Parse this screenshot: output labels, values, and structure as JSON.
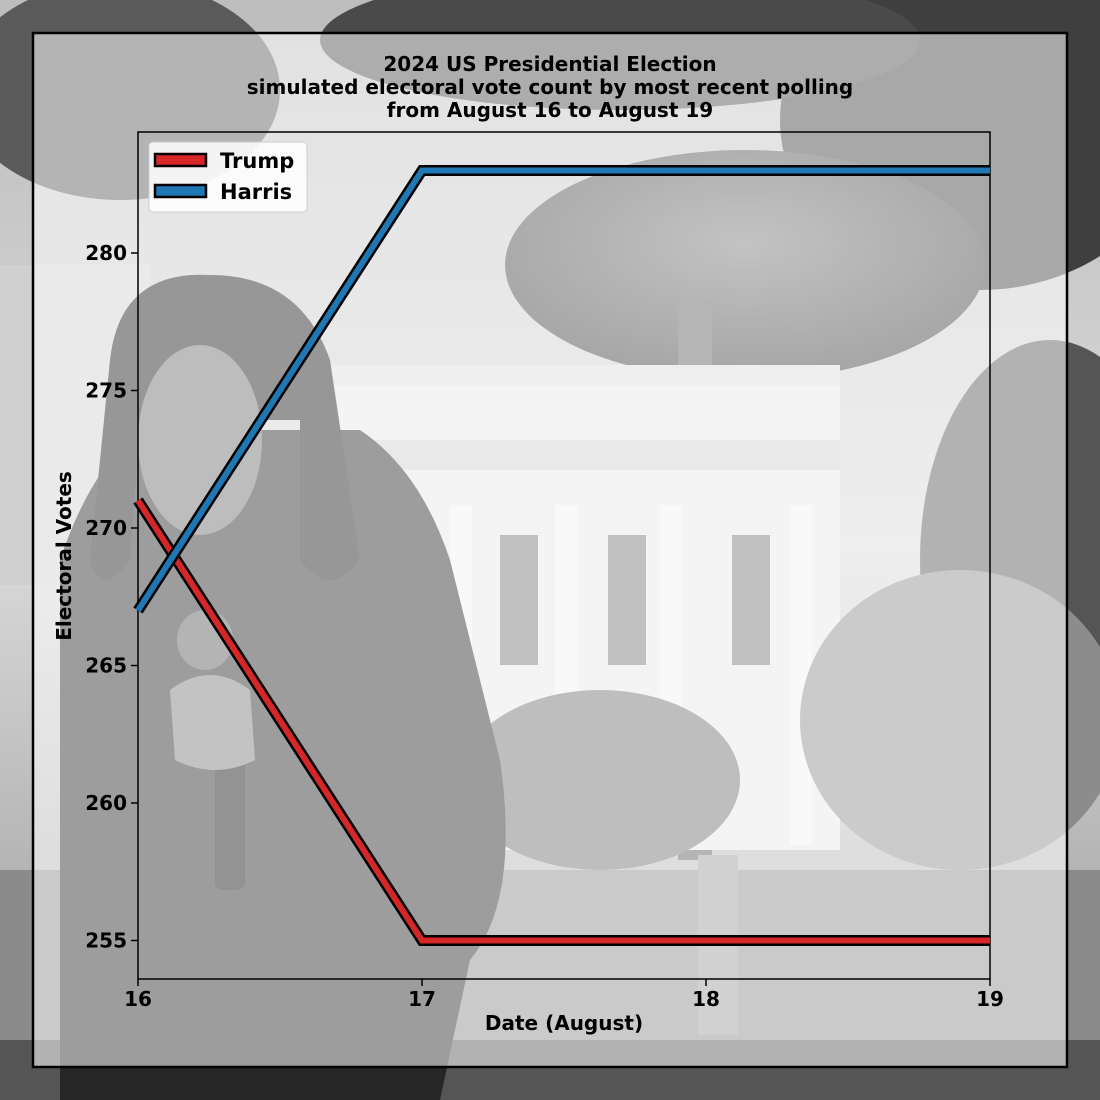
{
  "chart_data": {
    "type": "line",
    "title_lines": [
      "2024 US Presidential Election",
      "simulated electoral vote count by most recent polling",
      "from August 16 to August 19"
    ],
    "xlabel": "Date (August)",
    "ylabel": "Electoral Votes",
    "x": [
      16,
      17,
      18,
      19
    ],
    "x_ticks": [
      16,
      17,
      18,
      19
    ],
    "y_ticks": [
      255,
      260,
      265,
      270,
      275,
      280
    ],
    "xlim": [
      16,
      19
    ],
    "ylim": [
      253.6,
      284.4
    ],
    "grid": false,
    "legend_position": "top-left",
    "series": [
      {
        "name": "Trump",
        "color": "#d62728",
        "values": [
          271,
          255,
          255,
          255
        ]
      },
      {
        "name": "Harris",
        "color": "#1f77b4",
        "values": [
          267,
          283,
          283,
          283
        ]
      }
    ],
    "background": "black-and-white photo of Kamala Harris holding a microphone in front of the White House"
  }
}
